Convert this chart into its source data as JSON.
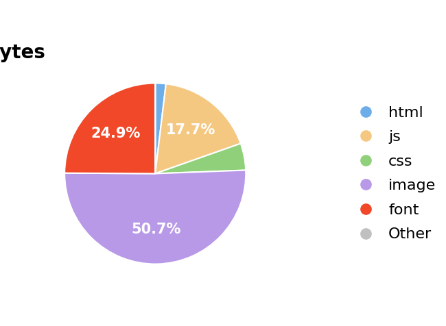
{
  "title": "Bytes",
  "labels": [
    "html",
    "js",
    "css",
    "image",
    "font",
    "Other"
  ],
  "percentages": [
    1.9,
    17.7,
    4.8,
    50.7,
    24.9,
    0.0001
  ],
  "colors": [
    "#6eaee8",
    "#f5c882",
    "#90d07a",
    "#b899e8",
    "#f04828",
    "#c0c0c0"
  ],
  "show_label": [
    false,
    true,
    false,
    true,
    true,
    false
  ],
  "autopct_labels": [
    "",
    "17.7%",
    "",
    "50.7%",
    "24.9%",
    ""
  ],
  "background_color": "#ffffff",
  "title_fontsize": 20,
  "label_fontsize": 15,
  "legend_fontsize": 16,
  "startangle": 90
}
